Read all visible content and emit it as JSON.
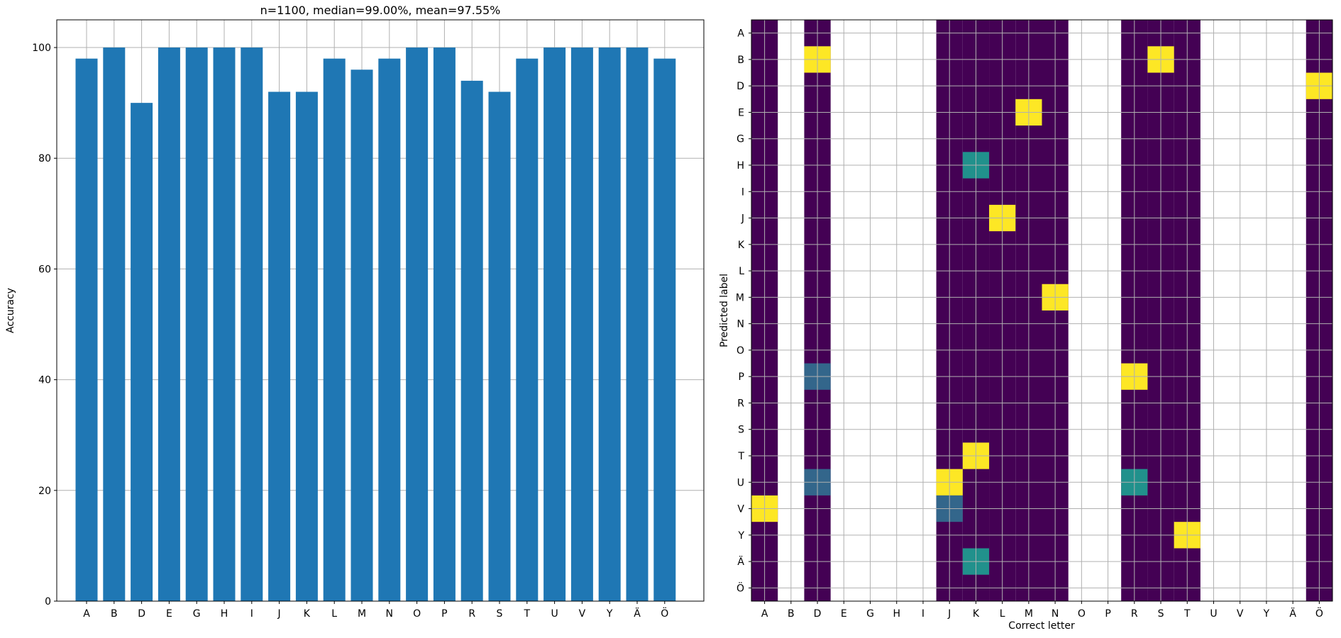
{
  "chart_data": [
    {
      "type": "bar",
      "title": "n=1100, median=99.00%, mean=97.55%",
      "xlabel": "",
      "ylabel": "Accuracy",
      "ylim": [
        0,
        105
      ],
      "yticks": [
        0,
        20,
        40,
        60,
        80,
        100
      ],
      "grid": true,
      "color": "#1f77b4",
      "categories": [
        "A",
        "B",
        "D",
        "E",
        "G",
        "H",
        "I",
        "J",
        "K",
        "L",
        "M",
        "N",
        "O",
        "P",
        "R",
        "S",
        "T",
        "U",
        "V",
        "Y",
        "Ä",
        "Ö"
      ],
      "values": [
        98,
        100,
        90,
        100,
        100,
        100,
        100,
        92,
        92,
        98,
        96,
        98,
        100,
        100,
        94,
        92,
        98,
        100,
        100,
        100,
        100,
        98
      ]
    },
    {
      "type": "heatmap",
      "title": "",
      "xlabel": "Correct letter",
      "ylabel": "Predicted label",
      "grid": true,
      "colormap": "viridis",
      "x_categories": [
        "A",
        "B",
        "D",
        "E",
        "G",
        "H",
        "I",
        "J",
        "K",
        "L",
        "M",
        "N",
        "O",
        "P",
        "R",
        "S",
        "T",
        "U",
        "V",
        "Y",
        "Ä",
        "Ö"
      ],
      "y_categories": [
        "A",
        "B",
        "D",
        "E",
        "G",
        "H",
        "I",
        "J",
        "K",
        "L",
        "M",
        "N",
        "O",
        "P",
        "R",
        "S",
        "T",
        "U",
        "V",
        "Y",
        "Ä",
        "Ö"
      ],
      "columns_with_errors": [
        "A",
        "D",
        "J",
        "K",
        "L",
        "M",
        "N",
        "R",
        "S",
        "T",
        "Ö"
      ],
      "cells": [
        {
          "x": "A",
          "y": "V",
          "value": 1.0
        },
        {
          "x": "D",
          "y": "B",
          "value": 1.0
        },
        {
          "x": "D",
          "y": "P",
          "value": 0.33
        },
        {
          "x": "D",
          "y": "U",
          "value": 0.33
        },
        {
          "x": "J",
          "y": "U",
          "value": 1.0
        },
        {
          "x": "J",
          "y": "V",
          "value": 0.33
        },
        {
          "x": "K",
          "y": "H",
          "value": 0.5
        },
        {
          "x": "K",
          "y": "T",
          "value": 1.0
        },
        {
          "x": "K",
          "y": "Ä",
          "value": 0.5
        },
        {
          "x": "L",
          "y": "J",
          "value": 1.0
        },
        {
          "x": "M",
          "y": "E",
          "value": 1.0
        },
        {
          "x": "N",
          "y": "M",
          "value": 1.0
        },
        {
          "x": "R",
          "y": "P",
          "value": 1.0
        },
        {
          "x": "R",
          "y": "U",
          "value": 0.5
        },
        {
          "x": "S",
          "y": "B",
          "value": 1.0
        },
        {
          "x": "T",
          "y": "Y",
          "value": 1.0
        },
        {
          "x": "Ö",
          "y": "D",
          "value": 1.0
        }
      ]
    }
  ]
}
